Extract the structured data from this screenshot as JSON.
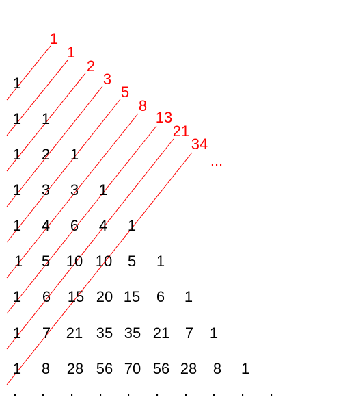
{
  "triangle_rows": [
    [
      "1"
    ],
    [
      "1",
      "1"
    ],
    [
      "1",
      "2",
      "1"
    ],
    [
      "1",
      "3",
      "3",
      "1"
    ],
    [
      "1",
      "4",
      "6",
      "4",
      "1"
    ],
    [
      "1",
      "5",
      "10",
      "10",
      "5",
      "1"
    ],
    [
      "1",
      "6",
      "15",
      "20",
      "15",
      "6",
      "1"
    ],
    [
      "1",
      "7",
      "21",
      "35",
      "35",
      "21",
      "7",
      "1"
    ],
    [
      "1",
      "8",
      "28",
      "56",
      "70",
      "56",
      "28",
      "8",
      "1"
    ]
  ],
  "fibonacci_sums": [
    "1",
    "1",
    "2",
    "3",
    "5",
    "8",
    "13",
    "21",
    "34"
  ],
  "fibonacci_more": "...",
  "continuation_dots": [
    ".",
    ".",
    ".",
    ".",
    ".",
    ".",
    ".",
    ".",
    ".",
    "."
  ],
  "colors": {
    "diagonal": "#ff0000",
    "numbers": "#000000"
  }
}
